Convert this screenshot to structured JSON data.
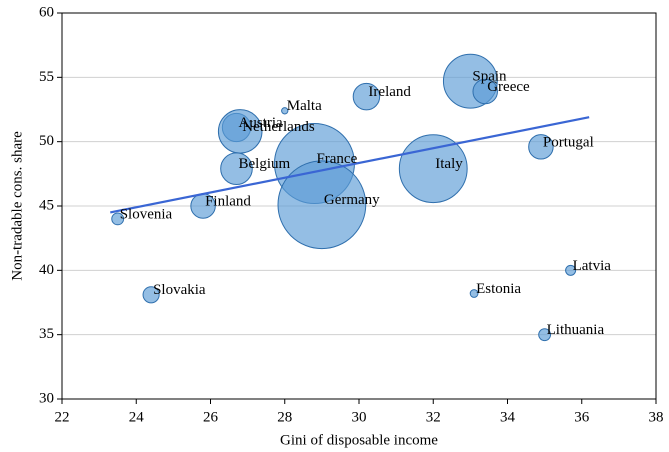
{
  "chart_data": {
    "type": "scatter",
    "xlabel": "Gini of disposable income",
    "ylabel": "Non-tradable cons. share",
    "categories": [
      "Slovenia",
      "Slovakia",
      "Finland",
      "Belgium",
      "Austria",
      "Netherlands",
      "Malta",
      "France",
      "Germany",
      "Ireland",
      "Italy",
      "Spain",
      "Greece",
      "Portugal",
      "Latvia",
      "Estonia",
      "Lithuania"
    ],
    "x": [
      23.5,
      24.4,
      25.8,
      26.7,
      26.7,
      26.8,
      28.0,
      28.8,
      29.0,
      30.2,
      32.0,
      33.0,
      33.4,
      34.9,
      35.7,
      33.1,
      35.0
    ],
    "values": [
      44.0,
      38.1,
      45.0,
      47.9,
      51.1,
      50.8,
      52.4,
      48.3,
      45.1,
      53.5,
      47.9,
      54.7,
      53.9,
      49.6,
      40.0,
      38.2,
      35.0
    ],
    "sizes": [
      1.4,
      2.6,
      6,
      10,
      8,
      19,
      0.4,
      64,
      77,
      7,
      46,
      29,
      6,
      6,
      1,
      0.6,
      1.4
    ],
    "color": "#5b9bd5",
    "edge_color": "#2f6fad",
    "trend_line": {
      "x": [
        23.3,
        36.2
      ],
      "y": [
        44.5,
        51.9
      ],
      "color": "#3a66d4"
    },
    "xlim": [
      22,
      38
    ],
    "xticks": [
      22,
      24,
      26,
      28,
      30,
      32,
      34,
      36,
      38
    ],
    "ylim": [
      30,
      60
    ],
    "yticks": [
      30,
      35,
      40,
      45,
      50,
      55,
      60
    ],
    "grid": true
  }
}
